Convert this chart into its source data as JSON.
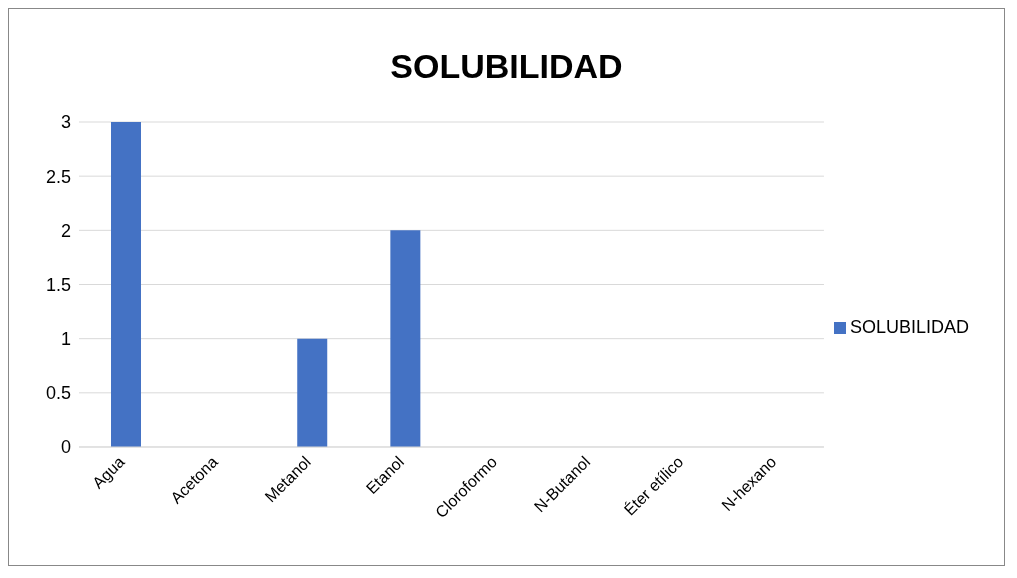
{
  "chart_data": {
    "type": "bar",
    "title": "SOLUBILIDAD",
    "categories": [
      "Agua",
      "Acetona",
      "Metanol",
      "Etanol",
      "Cloroformo",
      "N-Butanol",
      "Éter etílico",
      "N-hexano"
    ],
    "series": [
      {
        "name": "SOLUBILIDAD",
        "color": "#4472c4",
        "values": [
          3,
          0,
          1,
          2,
          0,
          0,
          0,
          0
        ]
      }
    ],
    "ylim": [
      0,
      3
    ],
    "yticks": [
      0,
      0.5,
      1,
      1.5,
      2,
      2.5,
      3
    ],
    "grid": "y",
    "legend": "right"
  }
}
